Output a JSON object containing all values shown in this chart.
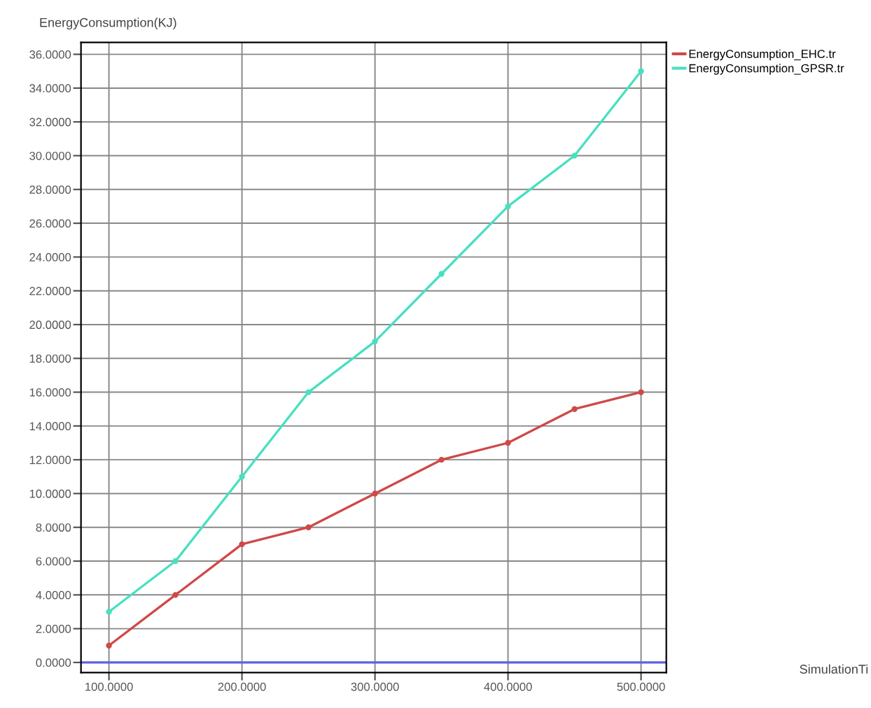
{
  "chart_data": {
    "type": "line",
    "ylabel": "EnergyConsumption(KJ)",
    "annotations": [
      "SimulationTi"
    ],
    "x": [
      100,
      150,
      200,
      250,
      300,
      350,
      400,
      450,
      500
    ],
    "series": [
      {
        "name": "EnergyConsumption_EHC.tr",
        "color": "#d04848",
        "values": [
          1,
          4,
          7,
          8,
          10,
          12,
          13,
          15,
          16
        ]
      },
      {
        "name": "EnergyConsumption_GPSR.tr",
        "color": "#48e0c0",
        "values": [
          3,
          6,
          11,
          16,
          19,
          23,
          27,
          30,
          35
        ]
      }
    ],
    "xlim": [
      79,
      519
    ],
    "ylim": [
      -0.6,
      36.7
    ],
    "xticks": [
      {
        "value": 100,
        "label": "100.0000"
      },
      {
        "value": 200,
        "label": "200.0000"
      },
      {
        "value": 300,
        "label": "300.0000"
      },
      {
        "value": 400,
        "label": "400.0000"
      },
      {
        "value": 500,
        "label": "500.0000"
      }
    ],
    "yticks": [
      {
        "value": 0,
        "label": "0.0000"
      },
      {
        "value": 2,
        "label": "2.0000"
      },
      {
        "value": 4,
        "label": "4.0000"
      },
      {
        "value": 6,
        "label": "6.0000"
      },
      {
        "value": 8,
        "label": "8.0000"
      },
      {
        "value": 10,
        "label": "10.0000"
      },
      {
        "value": 12,
        "label": "12.0000"
      },
      {
        "value": 14,
        "label": "14.0000"
      },
      {
        "value": 16,
        "label": "16.0000"
      },
      {
        "value": 18,
        "label": "18.0000"
      },
      {
        "value": 20,
        "label": "20.0000"
      },
      {
        "value": 22,
        "label": "22.0000"
      },
      {
        "value": 24,
        "label": "24.0000"
      },
      {
        "value": 26,
        "label": "26.0000"
      },
      {
        "value": 28,
        "label": "28.0000"
      },
      {
        "value": 30,
        "label": "30.0000"
      },
      {
        "value": 32,
        "label": "32.0000"
      },
      {
        "value": 34,
        "label": "34.0000"
      },
      {
        "value": 36,
        "label": "36.0000"
      }
    ],
    "ref_lines": [
      {
        "axis": "y",
        "value": 0,
        "color": "#6060e0"
      }
    ],
    "grid": true,
    "legend": "top right",
    "marker": "circle",
    "line_style": "solid"
  }
}
